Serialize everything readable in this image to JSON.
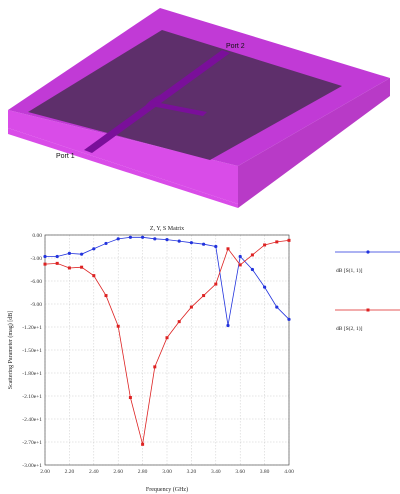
{
  "model": {
    "port2_label": "Port 2",
    "port1_label": "Port 1",
    "colors": {
      "top": "#c13ad6",
      "substrate": "#5e2f6b",
      "side_front": "#d94ce8",
      "side_right": "#b83ac7",
      "trace": "#7a0f9a"
    }
  },
  "chart_data": {
    "type": "line",
    "title": "Z, Y, S Matrix",
    "xlabel": "Frequency (GHz)",
    "ylabel": "Scattering Parameter (mag) [dB]",
    "xlim": [
      2.0,
      4.0
    ],
    "ylim": [
      -30.0,
      0.0
    ],
    "x_ticks": [
      2.0,
      2.2,
      2.4,
      2.6,
      2.8,
      3.0,
      3.2,
      3.4,
      3.6,
      3.8,
      4.0
    ],
    "x_tick_labels": [
      "2.00",
      "2.20",
      "2.40",
      "2.60",
      "2.80",
      "3.00",
      "3.20",
      "3.40",
      "3.60",
      "3.80",
      "4.00"
    ],
    "y_ticks": [
      0,
      -3,
      -6,
      -9,
      -12,
      -15,
      -18,
      -21,
      -24,
      -27,
      -30
    ],
    "y_tick_labels": [
      "0.00",
      "-3.00",
      "-6.00",
      "-9.00",
      "-1.20e+1",
      "-1.50e+1",
      "-1.80e+1",
      "-2.10e+1",
      "-2.40e+1",
      "-2.70e+1",
      "-3.00e+1"
    ],
    "grid": true,
    "legend_position": "right",
    "x": [
      2.0,
      2.1,
      2.2,
      2.3,
      2.4,
      2.5,
      2.6,
      2.7,
      2.8,
      2.9,
      3.0,
      3.1,
      3.2,
      3.3,
      3.4,
      3.5,
      3.6,
      3.7,
      3.8,
      3.9,
      4.0
    ],
    "series": [
      {
        "name": "dB [S(1, 1)]",
        "color": "#2233dd",
        "values": [
          -2.8,
          -2.8,
          -2.4,
          -2.5,
          -1.8,
          -1.1,
          -0.5,
          -0.3,
          -0.3,
          -0.5,
          -0.6,
          -0.8,
          -1.0,
          -1.2,
          -1.5,
          -11.8,
          -2.8,
          -4.5,
          -6.8,
          -9.4,
          -11.0
        ]
      },
      {
        "name": "dB [S(2, 1)]",
        "color": "#dd2222",
        "values": [
          -3.8,
          -3.7,
          -4.3,
          -4.2,
          -5.3,
          -7.9,
          -11.9,
          -21.2,
          -27.3,
          -17.2,
          -13.4,
          -11.3,
          -9.4,
          -7.9,
          -6.4,
          -1.8,
          -3.9,
          -2.6,
          -1.3,
          -0.9,
          -0.7
        ]
      }
    ]
  }
}
